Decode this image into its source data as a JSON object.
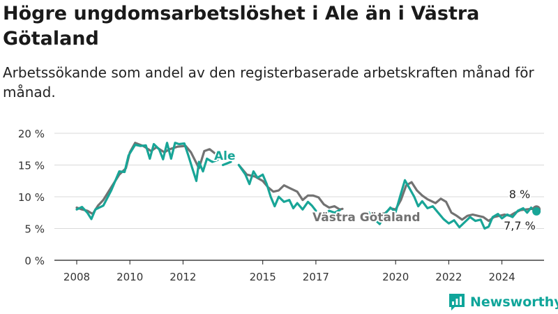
{
  "title": "Högre ungdomsarbetslöshet i Ale än i Västra Götaland",
  "subtitle": "Arbetssökande som andel av den registerbaserade arbetskraften månad för månad.",
  "brand": {
    "name": "Newsworthy",
    "icon": "newsworthy-logo-icon"
  },
  "colors": {
    "ale": "#18a597",
    "vg": "#727272",
    "axis": "#1a1a1a",
    "grid": "#d9d9d9"
  },
  "chart_data": {
    "type": "line",
    "ylim": [
      0,
      20
    ],
    "xlim": [
      2007.5,
      2025.8
    ],
    "y_ticks": [
      0,
      5,
      10,
      15,
      20
    ],
    "y_tick_labels": [
      "0 %",
      "5 %",
      "10 %",
      "15 %",
      "20 %"
    ],
    "x_ticks": [
      2008,
      2010,
      2012,
      2015,
      2017,
      2020,
      2022,
      2024
    ],
    "grid": "horizontal",
    "series": [
      {
        "name": "Ale",
        "color_key": "ale",
        "end_label": "7,7 %",
        "points": [
          [
            2008.0,
            8.0
          ],
          [
            2008.2,
            8.4
          ],
          [
            2008.4,
            7.5
          ],
          [
            2008.55,
            6.5
          ],
          [
            2008.7,
            8.0
          ],
          [
            2009.0,
            8.6
          ],
          [
            2009.3,
            11.0
          ],
          [
            2009.6,
            14.0
          ],
          [
            2009.8,
            13.9
          ],
          [
            2009.95,
            16.5
          ],
          [
            2010.2,
            18.2
          ],
          [
            2010.4,
            18.0
          ],
          [
            2010.6,
            18.1
          ],
          [
            2010.75,
            16.0
          ],
          [
            2010.9,
            18.3
          ],
          [
            2011.1,
            17.5
          ],
          [
            2011.25,
            15.9
          ],
          [
            2011.4,
            18.5
          ],
          [
            2011.55,
            16.0
          ],
          [
            2011.7,
            18.5
          ],
          [
            2011.85,
            18.3
          ],
          [
            2012.05,
            18.4
          ],
          [
            2012.2,
            16.5
          ],
          [
            2012.35,
            14.5
          ],
          [
            2012.5,
            12.5
          ],
          [
            2012.6,
            15.5
          ],
          [
            2012.75,
            14.0
          ],
          [
            2012.9,
            16.0
          ],
          [
            2013.1,
            15.5
          ],
          [
            2013.3,
            15.8
          ],
          null,
          [
            2013.5,
            15.0
          ],
          [
            2013.8,
            15.5
          ],
          null,
          [
            2014.1,
            15.0
          ],
          [
            2014.35,
            13.5
          ],
          [
            2014.5,
            12.0
          ],
          [
            2014.65,
            14.0
          ],
          [
            2014.8,
            13.0
          ],
          [
            2015.0,
            13.5
          ],
          [
            2015.15,
            12.0
          ],
          [
            2015.3,
            10.0
          ],
          [
            2015.45,
            8.5
          ],
          [
            2015.6,
            10.0
          ],
          [
            2015.8,
            9.2
          ],
          [
            2016.0,
            9.5
          ],
          [
            2016.15,
            8.2
          ],
          [
            2016.3,
            9.0
          ],
          [
            2016.5,
            8.0
          ],
          [
            2016.7,
            9.2
          ],
          [
            2016.85,
            8.6
          ],
          [
            2017.0,
            7.8
          ],
          null,
          [
            2017.35,
            7.3
          ],
          [
            2017.5,
            7.8
          ],
          [
            2017.7,
            7.5
          ],
          [
            2017.9,
            7.9
          ],
          null,
          [
            2019.0,
            7.5
          ],
          [
            2019.2,
            6.5
          ],
          [
            2019.4,
            5.7
          ],
          [
            2019.6,
            7.3
          ],
          [
            2019.8,
            8.3
          ],
          [
            2020.0,
            7.6
          ],
          [
            2020.2,
            10.5
          ],
          [
            2020.35,
            12.6
          ],
          [
            2020.5,
            11.5
          ],
          [
            2020.7,
            10.0
          ],
          [
            2020.85,
            8.5
          ],
          [
            2021.0,
            9.3
          ],
          [
            2021.2,
            8.2
          ],
          [
            2021.4,
            8.5
          ],
          [
            2021.6,
            7.5
          ],
          [
            2021.8,
            6.5
          ],
          [
            2022.0,
            5.8
          ],
          [
            2022.2,
            6.3
          ],
          [
            2022.4,
            5.2
          ],
          [
            2022.6,
            6.0
          ],
          [
            2022.8,
            6.8
          ],
          [
            2023.0,
            6.2
          ],
          [
            2023.2,
            6.4
          ],
          [
            2023.35,
            5.0
          ],
          [
            2023.5,
            5.3
          ],
          [
            2023.65,
            6.8
          ],
          [
            2023.85,
            7.3
          ],
          [
            2024.0,
            6.6
          ],
          [
            2024.2,
            7.2
          ],
          [
            2024.4,
            6.8
          ],
          [
            2024.6,
            7.8
          ],
          [
            2024.8,
            8.2
          ],
          [
            2024.95,
            7.5
          ],
          [
            2025.1,
            8.3
          ],
          [
            2025.3,
            7.7
          ]
        ]
      },
      {
        "name": "Västra Götaland",
        "color_key": "vg",
        "end_label": "8 %",
        "points": [
          [
            2008.0,
            8.3
          ],
          [
            2008.2,
            8.0
          ],
          [
            2008.4,
            7.8
          ],
          [
            2008.6,
            7.3
          ],
          [
            2008.8,
            8.6
          ],
          [
            2009.0,
            9.5
          ],
          [
            2009.3,
            11.5
          ],
          [
            2009.6,
            13.5
          ],
          [
            2009.85,
            14.5
          ],
          [
            2010.0,
            17.0
          ],
          [
            2010.2,
            18.5
          ],
          [
            2010.5,
            18.0
          ],
          [
            2010.8,
            17.2
          ],
          [
            2011.0,
            17.8
          ],
          [
            2011.3,
            17.0
          ],
          [
            2011.5,
            17.5
          ],
          [
            2011.8,
            17.9
          ],
          [
            2012.1,
            18.0
          ],
          [
            2012.3,
            17.0
          ],
          [
            2012.6,
            14.5
          ],
          [
            2012.8,
            17.2
          ],
          [
            2013.0,
            17.5
          ],
          [
            2013.15,
            17.0
          ],
          [
            2013.3,
            16.5
          ],
          [
            2013.5,
            16.5
          ],
          null,
          [
            2014.1,
            15.0
          ],
          [
            2014.4,
            13.5
          ],
          [
            2014.7,
            13.2
          ],
          [
            2015.0,
            12.5
          ],
          [
            2015.2,
            11.5
          ],
          [
            2015.4,
            10.8
          ],
          [
            2015.6,
            11.0
          ],
          [
            2015.8,
            11.8
          ],
          [
            2016.0,
            11.4
          ],
          [
            2016.3,
            10.8
          ],
          [
            2016.5,
            9.5
          ],
          [
            2016.7,
            10.2
          ],
          [
            2016.9,
            10.2
          ],
          [
            2017.1,
            9.9
          ],
          [
            2017.3,
            8.8
          ],
          [
            2017.5,
            8.3
          ],
          [
            2017.7,
            8.5
          ],
          [
            2017.9,
            8.0
          ],
          [
            2018.0,
            8.1
          ],
          null,
          [
            2019.3,
            7.2
          ],
          [
            2019.6,
            7.4
          ],
          [
            2019.8,
            8.2
          ],
          [
            2020.0,
            8.0
          ],
          [
            2020.2,
            9.5
          ],
          [
            2020.4,
            11.8
          ],
          [
            2020.6,
            12.3
          ],
          [
            2020.8,
            11.0
          ],
          [
            2021.0,
            10.2
          ],
          [
            2021.2,
            9.6
          ],
          [
            2021.5,
            9.0
          ],
          [
            2021.7,
            9.7
          ],
          [
            2021.9,
            9.2
          ],
          [
            2022.1,
            7.5
          ],
          [
            2022.3,
            7.0
          ],
          [
            2022.5,
            6.4
          ],
          [
            2022.7,
            7.0
          ],
          [
            2022.9,
            7.2
          ],
          [
            2023.1,
            7.0
          ],
          [
            2023.3,
            6.8
          ],
          [
            2023.5,
            6.2
          ],
          [
            2023.7,
            6.8
          ],
          [
            2023.9,
            7.0
          ],
          [
            2024.1,
            7.2
          ],
          [
            2024.3,
            7.0
          ],
          [
            2024.5,
            7.5
          ],
          [
            2024.7,
            7.9
          ],
          [
            2024.9,
            8.0
          ],
          [
            2025.1,
            8.1
          ],
          [
            2025.3,
            8.0
          ]
        ]
      }
    ]
  }
}
